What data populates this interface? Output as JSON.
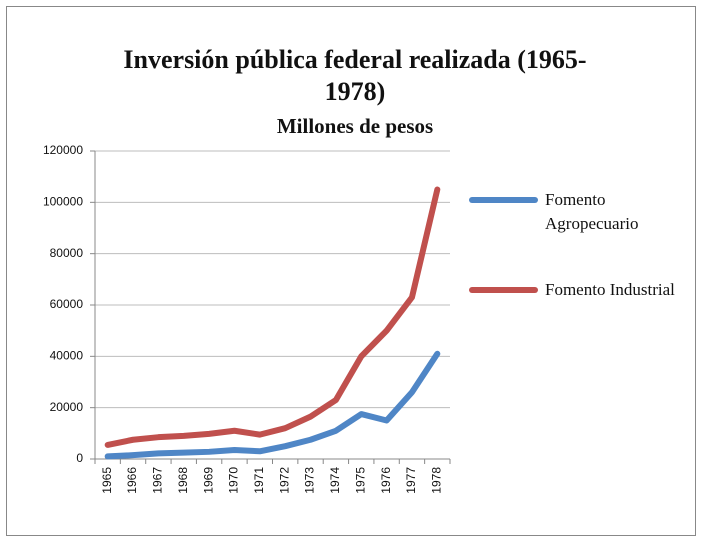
{
  "chart_data": {
    "type": "line",
    "title": "Inversión pública federal realizada (1965-1978)",
    "subtitle": "Millones de pesos",
    "categories": [
      "1965",
      "1966",
      "1967",
      "1968",
      "1969",
      "1970",
      "1971",
      "1972",
      "1973",
      "1974",
      "1975",
      "1976",
      "1977",
      "1978"
    ],
    "series": [
      {
        "name": "Fomento Agropecuario",
        "color": "#4f86c6",
        "values": [
          1000,
          1500,
          2200,
          2500,
          2800,
          3500,
          3000,
          5000,
          7500,
          11000,
          17500,
          15000,
          26000,
          41000
        ]
      },
      {
        "name": "Fomento Industrial",
        "color": "#c0504d",
        "values": [
          5500,
          7500,
          8500,
          9000,
          9800,
          11000,
          9500,
          12000,
          16500,
          23000,
          40000,
          50000,
          63000,
          105000
        ]
      }
    ],
    "ylim": [
      0,
      120000
    ],
    "yticks": [
      0,
      20000,
      40000,
      60000,
      80000,
      100000,
      120000
    ],
    "grid": true,
    "legend": "right"
  }
}
